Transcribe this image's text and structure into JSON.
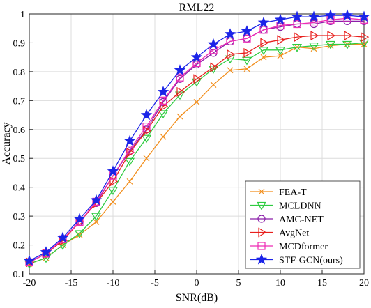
{
  "chart_data": {
    "type": "line",
    "title": "RML22",
    "xlabel": "SNR(dB)",
    "ylabel": "Accuracy",
    "xlim": [
      -20,
      20
    ],
    "ylim": [
      0.1,
      1
    ],
    "grid": true,
    "legend_position": "bottom-right",
    "x_ticks": [
      "-20",
      "-15",
      "-10",
      "-5",
      "0",
      "5",
      "10",
      "15",
      "20"
    ],
    "y_ticks": [
      "0.1",
      "0.2",
      "0.3",
      "0.4",
      "0.5",
      "0.6",
      "0.7",
      "0.8",
      "0.9",
      "1"
    ],
    "x": [
      -20,
      -18,
      -16,
      -14,
      -12,
      -10,
      -8,
      -6,
      -4,
      -2,
      0,
      2,
      4,
      6,
      8,
      10,
      12,
      14,
      16,
      18,
      20
    ],
    "series": [
      {
        "name": "FEA-T",
        "color": "#f28e1c",
        "marker": "x",
        "values": [
          0.135,
          0.155,
          0.2,
          0.235,
          0.28,
          0.35,
          0.42,
          0.5,
          0.575,
          0.645,
          0.695,
          0.755,
          0.805,
          0.81,
          0.85,
          0.855,
          0.885,
          0.88,
          0.89,
          0.895,
          0.895
        ]
      },
      {
        "name": "MCLDNN",
        "color": "#2ecc40",
        "marker": "triangle-down",
        "values": [
          0.135,
          0.155,
          0.2,
          0.24,
          0.3,
          0.39,
          0.49,
          0.57,
          0.655,
          0.72,
          0.765,
          0.81,
          0.845,
          0.84,
          0.875,
          0.875,
          0.885,
          0.89,
          0.895,
          0.895,
          0.9
        ]
      },
      {
        "name": "AMC-NET",
        "color": "#8b1fa9",
        "marker": "circle",
        "values": [
          0.14,
          0.17,
          0.22,
          0.28,
          0.345,
          0.44,
          0.525,
          0.6,
          0.695,
          0.775,
          0.825,
          0.865,
          0.905,
          0.915,
          0.945,
          0.955,
          0.965,
          0.965,
          0.975,
          0.975,
          0.975
        ]
      },
      {
        "name": "AvgNet",
        "color": "#e8201d",
        "marker": "triangle-right",
        "values": [
          0.14,
          0.17,
          0.215,
          0.28,
          0.345,
          0.42,
          0.52,
          0.595,
          0.68,
          0.73,
          0.775,
          0.815,
          0.86,
          0.865,
          0.9,
          0.91,
          0.92,
          0.925,
          0.925,
          0.925,
          0.92
        ]
      },
      {
        "name": "MCDformer",
        "color": "#ee2bb5",
        "marker": "square",
        "values": [
          0.14,
          0.17,
          0.22,
          0.28,
          0.35,
          0.44,
          0.53,
          0.61,
          0.7,
          0.78,
          0.83,
          0.875,
          0.905,
          0.915,
          0.945,
          0.96,
          0.965,
          0.97,
          0.98,
          0.985,
          0.98
        ]
      },
      {
        "name": "STF-GCN(ours)",
        "color": "#1b24e8",
        "marker": "star",
        "values": [
          0.145,
          0.175,
          0.225,
          0.29,
          0.355,
          0.455,
          0.56,
          0.65,
          0.73,
          0.805,
          0.85,
          0.895,
          0.93,
          0.94,
          0.97,
          0.98,
          0.99,
          0.99,
          0.995,
          0.995,
          0.99
        ]
      }
    ]
  }
}
